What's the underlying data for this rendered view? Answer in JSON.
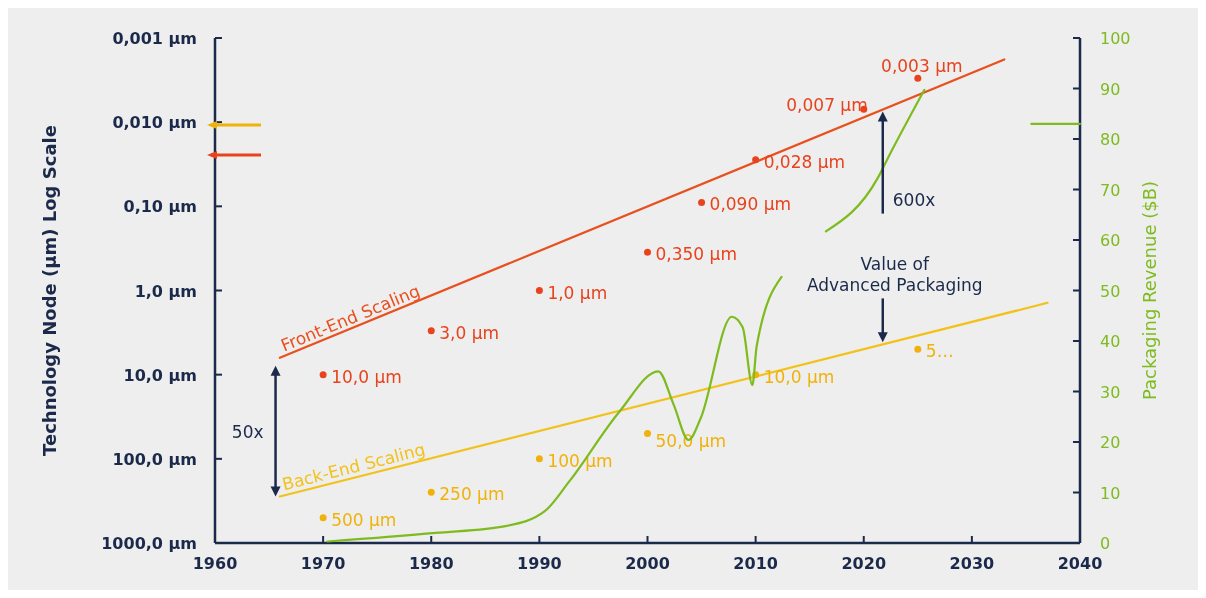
{
  "chart_data": {
    "type": "line",
    "xlabel": null,
    "ylabel": "Technology Node (µm) Log Scale",
    "y2label": "Packaging Revenue ($B)",
    "xlim": [
      1960,
      2040
    ],
    "xticks": [
      1960,
      1970,
      1980,
      1990,
      2000,
      2010,
      2020,
      2030,
      2040
    ],
    "ylim": [
      1000,
      0.001
    ],
    "log": "y",
    "yticks": [
      {
        "value": 0.001,
        "label": "0,001 µm"
      },
      {
        "value": 0.01,
        "label": "0,010 µm"
      },
      {
        "value": 0.1,
        "label": "0,10 µm"
      },
      {
        "value": 1,
        "label": "1,0 µm"
      },
      {
        "value": 10,
        "label": "10,0 µm"
      },
      {
        "value": 100,
        "label": "100,0 µm"
      },
      {
        "value": 1000,
        "label": "1000,0 µm"
      }
    ],
    "y2lim": [
      0,
      100
    ],
    "y2ticks": [
      0,
      10,
      20,
      30,
      40,
      50,
      60,
      70,
      80,
      90,
      100
    ],
    "series": [
      {
        "type": "line",
        "name": "Front-End Scaling",
        "color": "#e8501e",
        "marker": "none",
        "x": [
          1966,
          2033
        ],
        "values": [
          6.3,
          0.0018
        ]
      },
      {
        "type": "line",
        "name": "Back-End Scaling",
        "color": "#f2c21b",
        "marker": "none",
        "x": [
          1966,
          2037
        ],
        "values": [
          280,
          1.4
        ]
      },
      {
        "type": "scatter",
        "color": "#e8431c",
        "marker": "circle",
        "x": [
          1970,
          1980,
          1990,
          2000,
          2005,
          2010,
          2020,
          2025
        ],
        "values": [
          10,
          3,
          1,
          0.35,
          0.09,
          0.028,
          0.007,
          0.003
        ],
        "value_labels": [
          "10,0 µm",
          "3,0 µm",
          "1,0 µm",
          "0,350 µm",
          "0,090 µm",
          "0,028 µm",
          "0,007 µm",
          "0,003 µm"
        ]
      },
      {
        "type": "scatter",
        "color": "#f0b20a",
        "marker": "circle",
        "x": [
          1970,
          1980,
          1990,
          2000,
          2010,
          2025
        ],
        "values": [
          500,
          250,
          100,
          50,
          10,
          5
        ],
        "value_labels": [
          "500 µm",
          "250 µm",
          "100 µm",
          "50,0 µm",
          "10,0 µm",
          "5…"
        ]
      },
      {
        "type": "line",
        "axis": "y2",
        "color": "#7dbb1e",
        "marker": "none",
        "x": [
          1970.4,
          1980.4,
          1987,
          1990.5,
          1992.8,
          1997.4,
          2001,
          2002.4,
          2003.8,
          2004.9,
          2007.8,
          2008.8,
          2009.7,
          2010.1,
          2012.4,
          2014,
          2016.5,
          2021.3,
          2022.3,
          2025.6
        ],
        "values": [
          0.3,
          2,
          3.4,
          6.3,
          12.3,
          26,
          34,
          27.5,
          20.4,
          24.6,
          44.8,
          42.7,
          31.3,
          39,
          52.7,
          null,
          61.7,
          72.3,
          76.5,
          89.7
        ]
      },
      {
        "type": "line",
        "axis": "y2",
        "color": "#7dbb1e",
        "marker": "none",
        "x": [
          2035.5,
          2040
        ],
        "values": [
          83,
          83
        ]
      }
    ],
    "annotations": [
      "50x",
      "600x",
      "Value of Advanced Packaging"
    ]
  }
}
